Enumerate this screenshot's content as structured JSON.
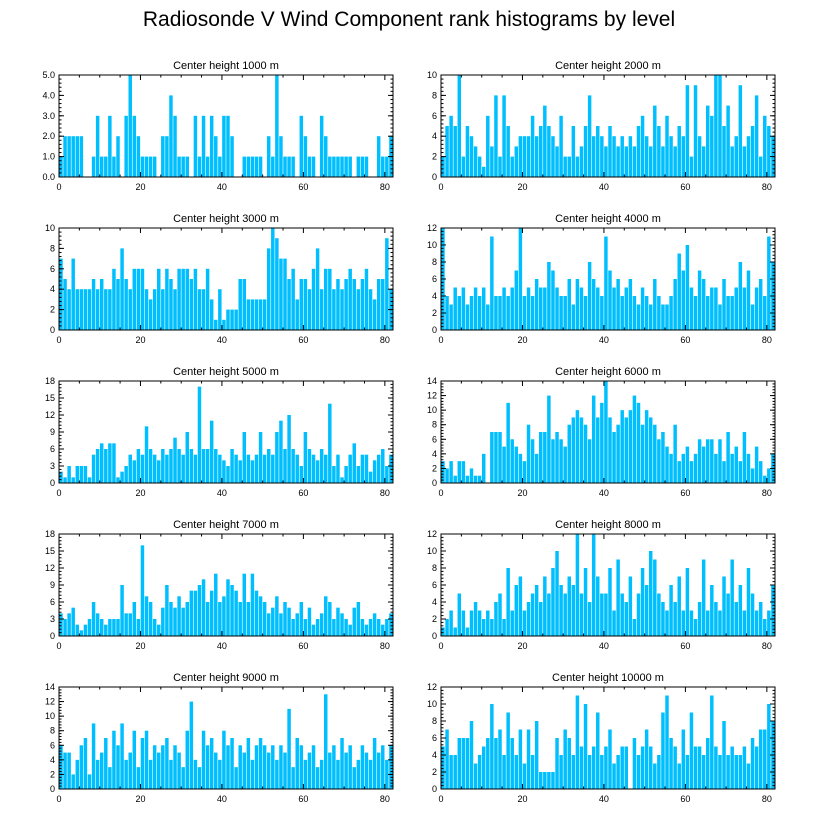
{
  "title": "Radiosonde V Wind Component rank histograms by level",
  "colors": {
    "bar": "#00BFFF",
    "axis": "#000000",
    "background": "#FFFFFF"
  },
  "chart_data": [
    {
      "type": "bar",
      "title": "Center height 1000 m",
      "x": {
        "start": 0,
        "step": 1,
        "count": 82,
        "ticks": [
          0,
          20,
          40,
          60,
          80
        ],
        "tick_labels": [
          "0",
          "20",
          "40",
          "60",
          "80"
        ],
        "range": [
          0,
          82
        ]
      },
      "ylim": [
        0,
        5
      ],
      "yticks": [
        0,
        1,
        2,
        3,
        4,
        5
      ],
      "ytick_labels": [
        "0.0",
        "1.0",
        "2.0",
        "3.0",
        "4.0",
        "5.0"
      ],
      "values": [
        1,
        2,
        2,
        2,
        2,
        2,
        0,
        0,
        1,
        3,
        1,
        1,
        3,
        1,
        2,
        0,
        3,
        5,
        3,
        2,
        1,
        1,
        1,
        1,
        0,
        2,
        2,
        4,
        3,
        1,
        1,
        1,
        0,
        3,
        1,
        3,
        1,
        3,
        2,
        1,
        3,
        3,
        2,
        0,
        0,
        1,
        1,
        1,
        1,
        1,
        0,
        2,
        1,
        5,
        2,
        1,
        1,
        1,
        0,
        3,
        2,
        1,
        1,
        0,
        3,
        2,
        1,
        1,
        1,
        1,
        1,
        1,
        0,
        1,
        1,
        1,
        0,
        0,
        2,
        1,
        1,
        2
      ]
    },
    {
      "type": "bar",
      "title": "Center height 2000 m",
      "x": {
        "start": 0,
        "step": 1,
        "count": 82,
        "ticks": [
          0,
          20,
          40,
          60,
          80
        ],
        "tick_labels": [
          "0",
          "20",
          "40",
          "60",
          "80"
        ],
        "range": [
          0,
          82
        ]
      },
      "ylim": [
        0,
        10
      ],
      "yticks": [
        0,
        2,
        4,
        6,
        8,
        10
      ],
      "ytick_labels": [
        "0",
        "2",
        "4",
        "6",
        "8",
        "10"
      ],
      "values": [
        2,
        5,
        6,
        5,
        10,
        2,
        5,
        4,
        3,
        2,
        1,
        6,
        3,
        8,
        2,
        8,
        5,
        2,
        3,
        4,
        4,
        4,
        6,
        4,
        5,
        7,
        5,
        4,
        3,
        6,
        2,
        2,
        5,
        2,
        3,
        5,
        8,
        4,
        5,
        4,
        3,
        5,
        4,
        3,
        4,
        3,
        4,
        3,
        5,
        6,
        4,
        3,
        7,
        5,
        3,
        6,
        4,
        3,
        5,
        4,
        9,
        2,
        9,
        4,
        3,
        7,
        6,
        10,
        10,
        5,
        7,
        3,
        4,
        9,
        3,
        4,
        5,
        8,
        2,
        6,
        5,
        4
      ]
    },
    {
      "type": "bar",
      "title": "Center height 3000 m",
      "x": {
        "start": 0,
        "step": 1,
        "count": 82,
        "ticks": [
          0,
          20,
          40,
          60,
          80
        ],
        "tick_labels": [
          "0",
          "20",
          "40",
          "60",
          "80"
        ],
        "range": [
          0,
          82
        ]
      },
      "ylim": [
        0,
        10
      ],
      "yticks": [
        0,
        2,
        4,
        6,
        8,
        10
      ],
      "ytick_labels": [
        "0",
        "2",
        "4",
        "6",
        "8",
        "10"
      ],
      "values": [
        7,
        5,
        4,
        7,
        4,
        4,
        4,
        4,
        5,
        4,
        5,
        4,
        4,
        6,
        5,
        8,
        5,
        4,
        6,
        6,
        6,
        4,
        3,
        4,
        6,
        4,
        6,
        5,
        4,
        6,
        6,
        6,
        5,
        6,
        4,
        4,
        6,
        3,
        1,
        4,
        1,
        2,
        2,
        2,
        5,
        5,
        3,
        3,
        3,
        3,
        3,
        8,
        10,
        9,
        7,
        7,
        5,
        6,
        3,
        5,
        5,
        4,
        6,
        8,
        4,
        6,
        6,
        4,
        5,
        4,
        5,
        6,
        5,
        4,
        5,
        6,
        4,
        3,
        5,
        5,
        9,
        4
      ]
    },
    {
      "type": "bar",
      "title": "Center height 4000 m",
      "x": {
        "start": 0,
        "step": 1,
        "count": 82,
        "ticks": [
          0,
          20,
          40,
          60,
          80
        ],
        "tick_labels": [
          "0",
          "20",
          "40",
          "60",
          "80"
        ],
        "range": [
          0,
          82
        ]
      },
      "ylim": [
        0,
        12
      ],
      "yticks": [
        0,
        2,
        4,
        6,
        8,
        10,
        12
      ],
      "ytick_labels": [
        "0",
        "2",
        "4",
        "6",
        "8",
        "10",
        "12"
      ],
      "values": [
        12,
        4,
        3,
        5,
        4,
        5,
        3,
        4,
        5,
        4,
        5,
        3,
        11,
        4,
        4,
        5,
        4,
        5,
        7,
        12,
        4,
        5,
        4,
        6,
        5,
        5,
        8,
        7,
        5,
        4,
        4,
        6,
        3,
        6,
        5,
        4,
        8,
        6,
        5,
        4,
        11,
        7,
        5,
        6,
        4,
        5,
        6,
        4,
        3,
        5,
        4,
        3,
        6,
        4,
        3,
        3,
        4,
        6,
        9,
        7,
        10,
        5,
        4,
        7,
        6,
        4,
        5,
        5,
        3,
        6,
        4,
        4,
        5,
        8,
        5,
        7,
        3,
        5,
        6,
        4,
        11,
        8
      ]
    },
    {
      "type": "bar",
      "title": "Center height 5000 m",
      "x": {
        "start": 0,
        "step": 1,
        "count": 82,
        "ticks": [
          0,
          20,
          40,
          60,
          80
        ],
        "tick_labels": [
          "0",
          "20",
          "40",
          "60",
          "80"
        ],
        "range": [
          0,
          82
        ]
      },
      "ylim": [
        0,
        18
      ],
      "yticks": [
        0,
        3,
        6,
        9,
        12,
        15,
        18
      ],
      "ytick_labels": [
        "0",
        "3",
        "6",
        "9",
        "12",
        "15",
        "18"
      ],
      "values": [
        2,
        1,
        3,
        1,
        3,
        3,
        3,
        1,
        5,
        6,
        7,
        6,
        7,
        7,
        1,
        2,
        3,
        5,
        4,
        6,
        5,
        10,
        6,
        5,
        4,
        6,
        5,
        6,
        8,
        6,
        5,
        9,
        6,
        5,
        17,
        6,
        6,
        11,
        6,
        5,
        4,
        3,
        6,
        5,
        4,
        9,
        5,
        4,
        5,
        9,
        5,
        6,
        5,
        9,
        11,
        6,
        12,
        6,
        5,
        3,
        9,
        6,
        5,
        4,
        6,
        5,
        14,
        3,
        5,
        1,
        3,
        5,
        7,
        3,
        5,
        5,
        2,
        4,
        5,
        6,
        3,
        5
      ]
    },
    {
      "type": "bar",
      "title": "Center height 6000 m",
      "x": {
        "start": 0,
        "step": 1,
        "count": 82,
        "ticks": [
          0,
          20,
          40,
          60,
          80
        ],
        "tick_labels": [
          "0",
          "20",
          "40",
          "60",
          "80"
        ],
        "range": [
          0,
          82
        ]
      },
      "ylim": [
        0,
        14
      ],
      "yticks": [
        0,
        2,
        4,
        6,
        8,
        10,
        12,
        14
      ],
      "ytick_labels": [
        "0",
        "2",
        "4",
        "6",
        "8",
        "10",
        "12",
        "14"
      ],
      "values": [
        3,
        2,
        3,
        1,
        3,
        3,
        1,
        2,
        1,
        1,
        4,
        0,
        7,
        7,
        7,
        5,
        11,
        6,
        5,
        4,
        3,
        8,
        6,
        4,
        7,
        7,
        12,
        6,
        7,
        6,
        5,
        8,
        9,
        10,
        9,
        8,
        6,
        12,
        9,
        11,
        14,
        9,
        7,
        8,
        10,
        9,
        10,
        12,
        11,
        8,
        10,
        9,
        8,
        6,
        7,
        5,
        4,
        8,
        3,
        4,
        5,
        3,
        4,
        6,
        5,
        6,
        6,
        4,
        6,
        3,
        7,
        4,
        5,
        3,
        7,
        4,
        2,
        5,
        3,
        1,
        2,
        4
      ]
    },
    {
      "type": "bar",
      "title": "Center height 7000 m",
      "x": {
        "start": 0,
        "step": 1,
        "count": 82,
        "ticks": [
          0,
          20,
          40,
          60,
          80
        ],
        "tick_labels": [
          "0",
          "20",
          "40",
          "60",
          "80"
        ],
        "range": [
          0,
          82
        ]
      },
      "ylim": [
        0,
        18
      ],
      "yticks": [
        0,
        3,
        6,
        9,
        12,
        15,
        18
      ],
      "ytick_labels": [
        "0",
        "3",
        "6",
        "9",
        "12",
        "15",
        "18"
      ],
      "values": [
        4,
        3,
        4,
        5,
        2,
        1,
        2,
        3,
        6,
        4,
        3,
        2,
        3,
        3,
        3,
        9,
        4,
        4,
        6,
        3,
        16,
        7,
        6,
        3,
        2,
        5,
        9,
        6,
        5,
        7,
        5,
        6,
        8,
        8,
        9,
        10,
        6,
        8,
        11,
        6,
        7,
        10,
        9,
        8,
        6,
        11,
        6,
        11,
        8,
        7,
        6,
        4,
        5,
        7,
        4,
        6,
        5,
        3,
        4,
        6,
        3,
        5,
        2,
        3,
        4,
        7,
        6,
        3,
        5,
        4,
        3,
        2,
        5,
        6,
        3,
        2,
        3,
        4,
        3,
        2,
        3,
        4
      ]
    },
    {
      "type": "bar",
      "title": "Center height 8000 m",
      "x": {
        "start": 0,
        "step": 1,
        "count": 82,
        "ticks": [
          0,
          20,
          40,
          60,
          80
        ],
        "tick_labels": [
          "0",
          "20",
          "40",
          "60",
          "80"
        ],
        "range": [
          0,
          82
        ]
      },
      "ylim": [
        0,
        12
      ],
      "yticks": [
        0,
        2,
        4,
        6,
        8,
        10,
        12
      ],
      "ytick_labels": [
        "0",
        "2",
        "4",
        "6",
        "8",
        "10",
        "12"
      ],
      "values": [
        1,
        2,
        3,
        1,
        5,
        3,
        1,
        3,
        4,
        3,
        2,
        3,
        2,
        4,
        5,
        2,
        8,
        3,
        6,
        7,
        3,
        4,
        5,
        6,
        4,
        7,
        5,
        8,
        10,
        6,
        5,
        7,
        6,
        12,
        5,
        8,
        4,
        12,
        7,
        5,
        5,
        8,
        3,
        9,
        5,
        4,
        7,
        2,
        5,
        8,
        6,
        10,
        9,
        5,
        4,
        3,
        6,
        4,
        7,
        3,
        8,
        3,
        2,
        4,
        9,
        3,
        6,
        4,
        3,
        7,
        5,
        9,
        4,
        6,
        3,
        8,
        5,
        3,
        4,
        2,
        3,
        6
      ]
    },
    {
      "type": "bar",
      "title": "Center height 9000 m",
      "x": {
        "start": 0,
        "step": 1,
        "count": 82,
        "ticks": [
          0,
          20,
          40,
          60,
          80
        ],
        "tick_labels": [
          "0",
          "20",
          "40",
          "60",
          "80"
        ],
        "range": [
          0,
          82
        ]
      },
      "ylim": [
        0,
        14
      ],
      "yticks": [
        0,
        2,
        4,
        6,
        8,
        10,
        12,
        14
      ],
      "ytick_labels": [
        "0",
        "2",
        "4",
        "6",
        "8",
        "10",
        "12",
        "14"
      ],
      "values": [
        6,
        5,
        5,
        2,
        4,
        6,
        7,
        2,
        9,
        4,
        5,
        7,
        3,
        8,
        6,
        9,
        4,
        5,
        8,
        3,
        7,
        8,
        4,
        6,
        5,
        6,
        7,
        4,
        6,
        5,
        3,
        8,
        12,
        4,
        3,
        8,
        6,
        7,
        5,
        4,
        8,
        6,
        7,
        3,
        6,
        5,
        7,
        4,
        6,
        7,
        6,
        5,
        6,
        4,
        6,
        5,
        11,
        3,
        7,
        6,
        4,
        5,
        6,
        3,
        4,
        13,
        5,
        6,
        4,
        7,
        5,
        6,
        3,
        4,
        6,
        5,
        4,
        7,
        5,
        6,
        4,
        6
      ]
    },
    {
      "type": "bar",
      "title": "Center height 10000 m",
      "x": {
        "start": 0,
        "step": 1,
        "count": 82,
        "ticks": [
          0,
          20,
          40,
          60,
          80
        ],
        "tick_labels": [
          "0",
          "20",
          "40",
          "60",
          "80"
        ],
        "range": [
          0,
          82
        ]
      },
      "ylim": [
        0,
        12
      ],
      "yticks": [
        0,
        2,
        4,
        6,
        8,
        10,
        12
      ],
      "ytick_labels": [
        "0",
        "2",
        "4",
        "6",
        "8",
        "10",
        "12"
      ],
      "values": [
        5,
        7,
        4,
        4,
        6,
        6,
        6,
        8,
        3,
        4,
        5,
        6,
        10,
        6,
        7,
        4,
        9,
        6,
        4,
        7,
        3,
        7,
        4,
        8,
        2,
        2,
        2,
        2,
        6,
        4,
        7,
        6,
        4,
        11,
        5,
        10,
        4,
        5,
        9,
        4,
        5,
        7,
        3,
        4,
        5,
        5,
        0,
        6,
        4,
        5,
        7,
        5,
        3,
        4,
        9,
        11,
        6,
        5,
        3,
        7,
        4,
        9,
        5,
        5,
        4,
        6,
        11,
        5,
        4,
        8,
        4,
        5,
        4,
        4,
        5,
        3,
        6,
        5,
        7,
        7,
        10,
        8
      ]
    }
  ]
}
